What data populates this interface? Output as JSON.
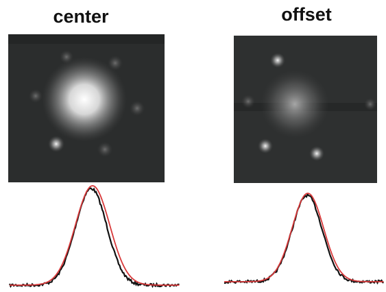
{
  "panels": [
    {
      "label": "center"
    },
    {
      "label": "offset"
    }
  ]
}
